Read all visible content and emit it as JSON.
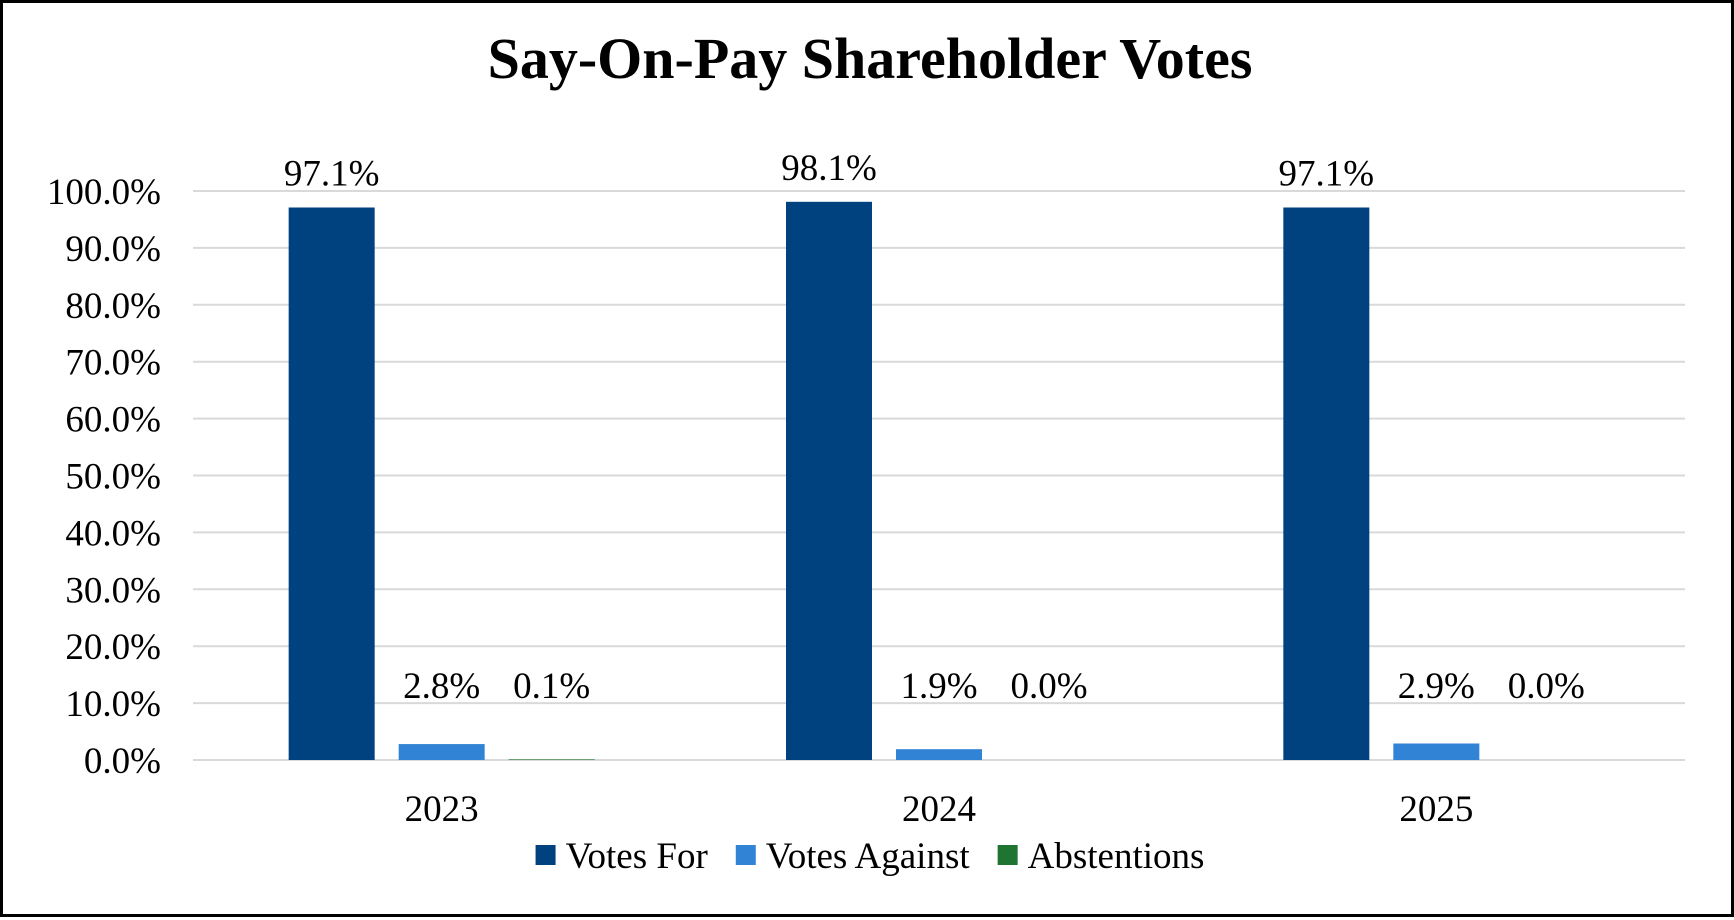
{
  "chart_data": {
    "type": "bar",
    "title": "Say-On-Pay Shareholder Votes",
    "xlabel": "",
    "ylabel": "",
    "categories": [
      "2023",
      "2024",
      "2025"
    ],
    "series": [
      {
        "name": "Votes For",
        "color": "#00417f",
        "values": [
          97.1,
          98.1,
          97.1
        ],
        "labels": [
          "97.1%",
          "98.1%",
          "97.1%"
        ]
      },
      {
        "name": "Votes Against",
        "color": "#3183d6",
        "values": [
          2.8,
          1.9,
          2.9
        ],
        "labels": [
          "2.8%",
          "1.9%",
          "2.9%"
        ]
      },
      {
        "name": "Abstentions",
        "color": "#1e7430",
        "values": [
          0.1,
          0.0,
          0.0
        ],
        "labels": [
          "0.1%",
          "0.0%",
          "0.0%"
        ]
      }
    ],
    "ylim": [
      0,
      100
    ],
    "yticks": [
      "0.0%",
      "10.0%",
      "20.0%",
      "30.0%",
      "40.0%",
      "50.0%",
      "60.0%",
      "70.0%",
      "80.0%",
      "90.0%",
      "100.0%"
    ],
    "grid": true,
    "legend": "bottom"
  }
}
